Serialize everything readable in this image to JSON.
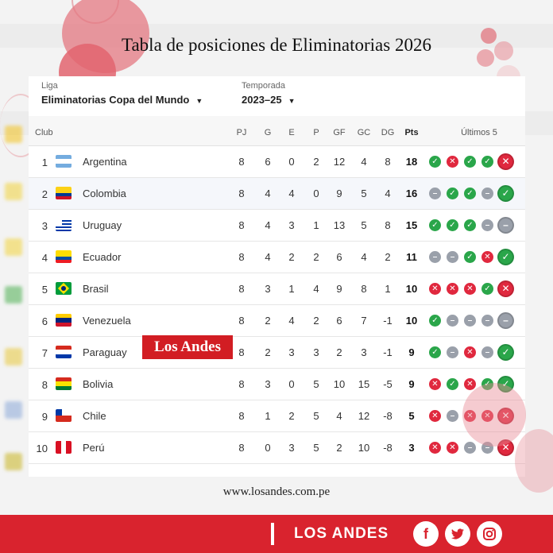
{
  "title": "Tabla de posiciones de Eliminatorias 2026",
  "filters": {
    "league_label": "Liga",
    "league_value": "Eliminatorias Copa del Mundo",
    "season_label": "Temporada",
    "season_value": "2023–25"
  },
  "headers": {
    "club": "Club",
    "pj": "PJ",
    "g": "G",
    "e": "E",
    "p": "P",
    "gf": "GF",
    "gc": "GC",
    "dg": "DG",
    "pts": "Pts",
    "last5": "Últimos 5"
  },
  "rows": [
    {
      "pos": "1",
      "team": "Argentina",
      "pj": "8",
      "g": "6",
      "e": "0",
      "p": "2",
      "gf": "12",
      "gc": "4",
      "dg": "8",
      "pts": "18",
      "form": [
        "W",
        "L",
        "W",
        "W",
        "L"
      ]
    },
    {
      "pos": "2",
      "team": "Colombia",
      "pj": "8",
      "g": "4",
      "e": "4",
      "p": "0",
      "gf": "9",
      "gc": "5",
      "dg": "4",
      "pts": "16",
      "form": [
        "D",
        "W",
        "W",
        "D",
        "W"
      ]
    },
    {
      "pos": "3",
      "team": "Uruguay",
      "pj": "8",
      "g": "4",
      "e": "3",
      "p": "1",
      "gf": "13",
      "gc": "5",
      "dg": "8",
      "pts": "15",
      "form": [
        "W",
        "W",
        "W",
        "D",
        "D"
      ]
    },
    {
      "pos": "4",
      "team": "Ecuador",
      "pj": "8",
      "g": "4",
      "e": "2",
      "p": "2",
      "gf": "6",
      "gc": "4",
      "dg": "2",
      "pts": "11",
      "form": [
        "D",
        "D",
        "W",
        "L",
        "W"
      ]
    },
    {
      "pos": "5",
      "team": "Brasil",
      "pj": "8",
      "g": "3",
      "e": "1",
      "p": "4",
      "gf": "9",
      "gc": "8",
      "dg": "1",
      "pts": "10",
      "form": [
        "L",
        "L",
        "L",
        "W",
        "L"
      ]
    },
    {
      "pos": "6",
      "team": "Venezuela",
      "pj": "8",
      "g": "2",
      "e": "4",
      "p": "2",
      "gf": "6",
      "gc": "7",
      "dg": "-1",
      "pts": "10",
      "form": [
        "W",
        "D",
        "D",
        "D",
        "D"
      ]
    },
    {
      "pos": "7",
      "team": "Paraguay",
      "pj": "8",
      "g": "2",
      "e": "3",
      "p": "3",
      "gf": "2",
      "gc": "3",
      "dg": "-1",
      "pts": "9",
      "form": [
        "W",
        "D",
        "L",
        "D",
        "W"
      ]
    },
    {
      "pos": "8",
      "team": "Bolivia",
      "pj": "8",
      "g": "3",
      "e": "0",
      "p": "5",
      "gf": "10",
      "gc": "15",
      "dg": "-5",
      "pts": "9",
      "form": [
        "L",
        "W",
        "L",
        "W",
        "W"
      ]
    },
    {
      "pos": "9",
      "team": "Chile",
      "pj": "8",
      "g": "1",
      "e": "2",
      "p": "5",
      "gf": "4",
      "gc": "12",
      "dg": "-8",
      "pts": "5",
      "form": [
        "L",
        "D",
        "L",
        "L",
        "L"
      ]
    },
    {
      "pos": "10",
      "team": "Perú",
      "pj": "8",
      "g": "0",
      "e": "3",
      "p": "5",
      "gf": "2",
      "gc": "10",
      "dg": "-8",
      "pts": "3",
      "form": [
        "L",
        "L",
        "D",
        "D",
        "L"
      ]
    }
  ],
  "watermark": "Los Andes",
  "website": "www.losandes.com.pe",
  "footer": {
    "brand": "LOS ANDES",
    "social": [
      "facebook-icon",
      "twitter-icon",
      "instagram-icon"
    ]
  },
  "colors": {
    "win": "#2aa64a",
    "loss": "#e0283e",
    "draw": "#9aa0aa",
    "brand_red": "#d9232e"
  }
}
